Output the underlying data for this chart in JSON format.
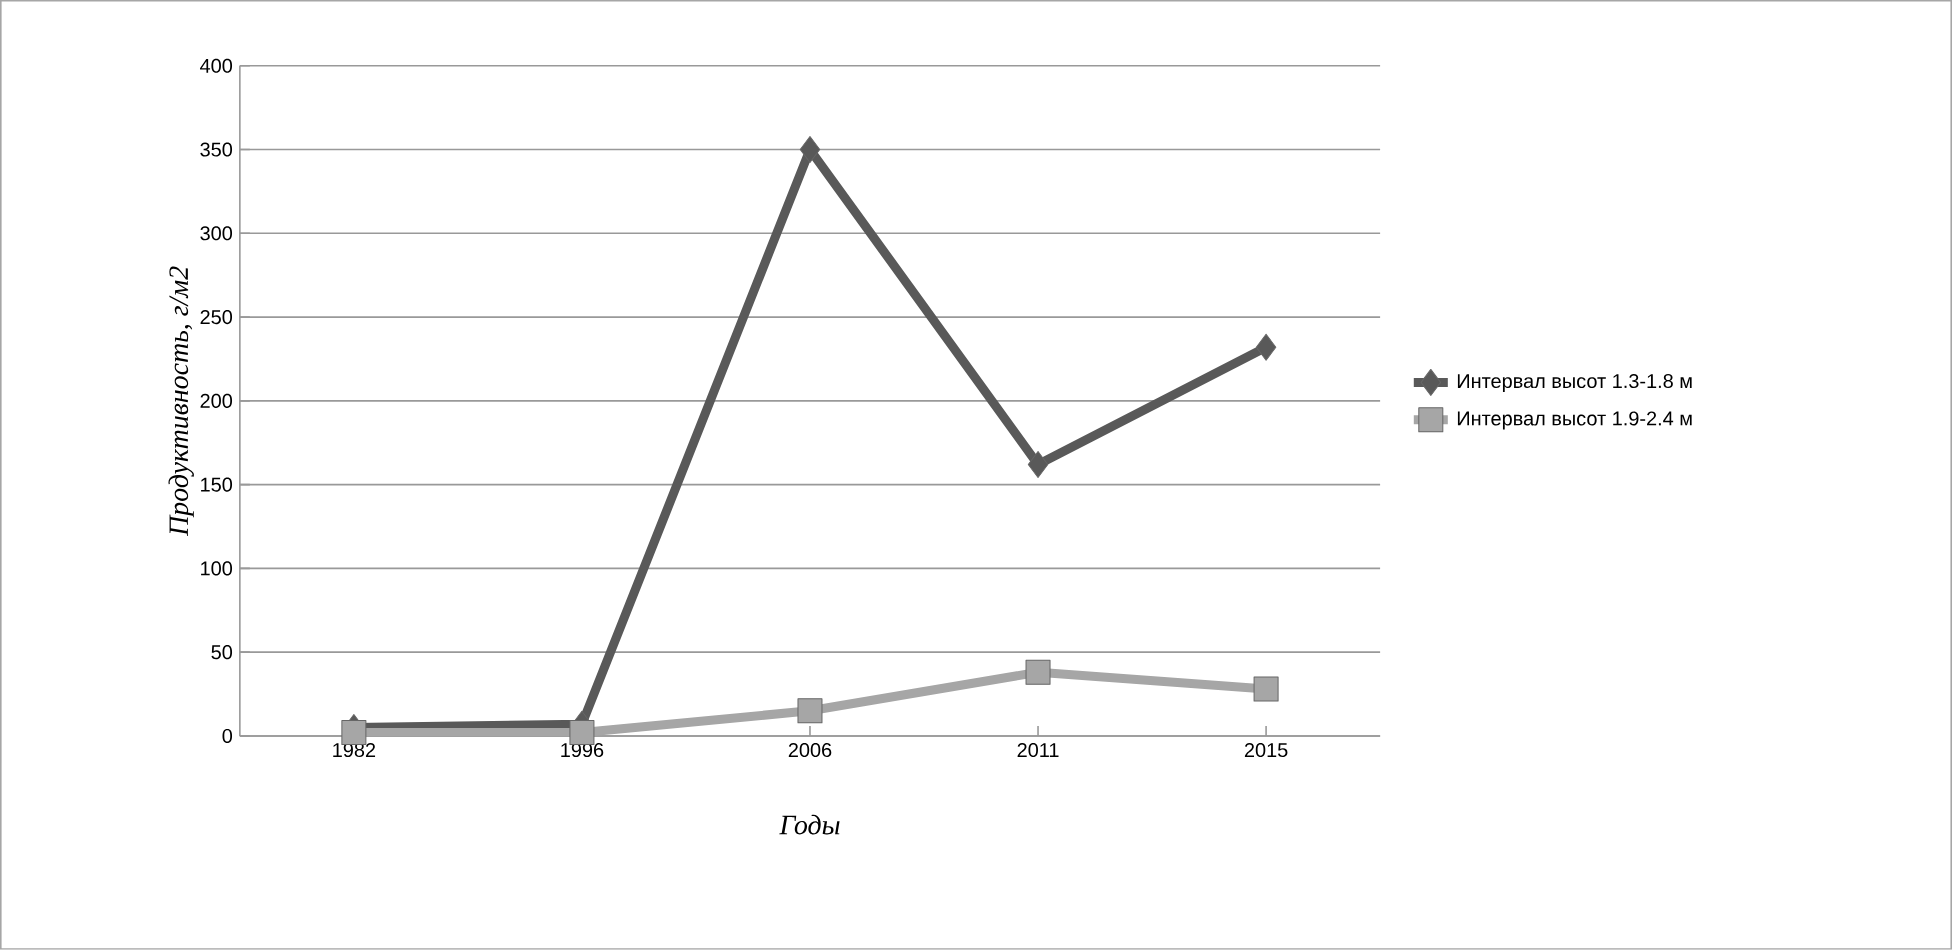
{
  "chart_data": {
    "type": "line",
    "xlabel": "Годы",
    "ylabel": "Продуктивность, г/м2",
    "categories": [
      "1982",
      "1996",
      "2006",
      "2011",
      "2015"
    ],
    "series": [
      {
        "name": "Интервал высот 1.3-1.8 м",
        "color": "#595959",
        "marker": "diamond",
        "values": [
          5,
          7,
          350,
          162,
          232
        ]
      },
      {
        "name": "Интервал высот 1.9-2.4 м",
        "color": "#a6a6a6",
        "marker": "square",
        "values": [
          2,
          2,
          15,
          38,
          28
        ]
      }
    ],
    "ylim": [
      0,
      400
    ],
    "yticks": [
      0,
      50,
      100,
      150,
      200,
      250,
      300,
      350,
      400
    ],
    "grid": "y",
    "legend": "right"
  }
}
